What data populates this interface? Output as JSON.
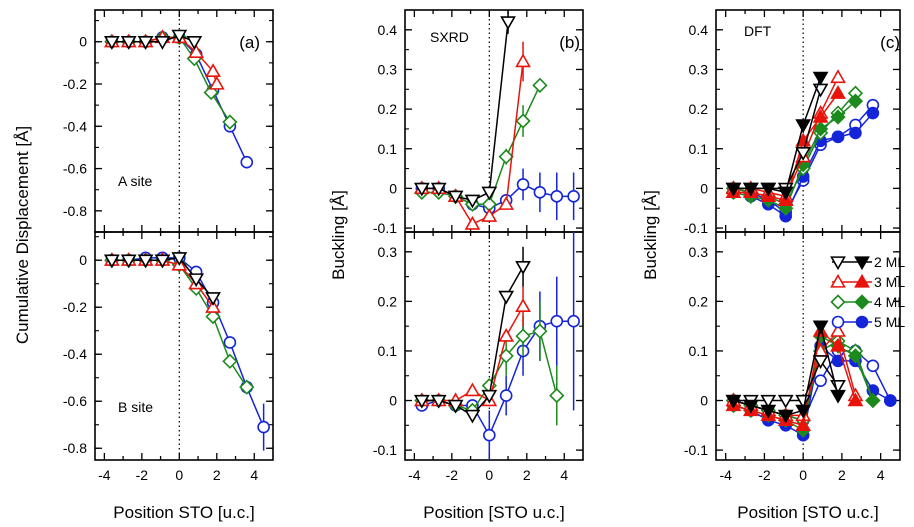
{
  "colors": {
    "2 ML": "#000000",
    "3 ML": "#e8140c",
    "4 ML": "#1c8a1c",
    "5 ML": "#1424d8"
  },
  "legend": [
    "2 ML",
    "3 ML",
    "4 ML",
    "5 ML"
  ],
  "chart_data": [
    {
      "type": "scatter",
      "panel": "a-top",
      "label": "(a)",
      "annotation": "A site",
      "ylabel": "Cumulative Displacement [Å]",
      "xlim": [
        -4.5,
        5.0
      ],
      "ylim": [
        -0.9,
        0.15
      ],
      "yticks": [
        "0",
        "-0.2",
        "-0.4",
        "-0.6",
        "-0.8"
      ],
      "yvals": [
        0,
        -0.2,
        -0.4,
        -0.6,
        -0.8
      ],
      "series": [
        {
          "name": "2 ML",
          "x": [
            -3.6,
            -2.7,
            -1.8,
            -0.9,
            0.0,
            0.8
          ],
          "y": [
            0.0,
            0.0,
            0.0,
            0.0,
            0.03,
            0.0
          ],
          "marker": "tri-down",
          "fill": "open"
        },
        {
          "name": "3 ML",
          "x": [
            -3.6,
            -2.7,
            -1.8,
            -0.9,
            0.0,
            0.9,
            1.8,
            2.0
          ],
          "y": [
            0.0,
            0.0,
            0.0,
            0.02,
            0.02,
            -0.05,
            -0.14,
            -0.2
          ],
          "marker": "tri-up",
          "fill": "open"
        },
        {
          "name": "4 ML",
          "x": [
            -3.6,
            -2.7,
            -1.8,
            -0.9,
            0.0,
            0.8,
            1.7,
            2.7
          ],
          "y": [
            0.0,
            0.0,
            0.0,
            0.02,
            0.02,
            -0.08,
            -0.24,
            -0.38
          ],
          "marker": "diamond",
          "fill": "open"
        },
        {
          "name": "5 ML",
          "x": [
            -3.6,
            -2.7,
            -1.8,
            -0.9,
            0.0,
            0.9,
            1.8,
            2.7,
            3.6
          ],
          "y": [
            0.0,
            0.0,
            0.0,
            0.02,
            0.02,
            -0.06,
            -0.23,
            -0.4,
            -0.57
          ],
          "marker": "circle",
          "fill": "open"
        }
      ]
    },
    {
      "type": "scatter",
      "panel": "a-bottom",
      "annotation": "B site",
      "xlabel": "Position STO [u.c.]",
      "xlim": [
        -4.5,
        5.0
      ],
      "ylim": [
        -0.85,
        0.12
      ],
      "xticks": [
        "-4",
        "-2",
        "0",
        "2",
        "4"
      ],
      "yticks": [
        "0",
        "-0.2",
        "-0.4",
        "-0.6",
        "-0.8"
      ],
      "yvals": [
        0,
        -0.2,
        -0.4,
        -0.6,
        -0.8
      ],
      "series": [
        {
          "name": "2 ML",
          "x": [
            -3.6,
            -2.7,
            -1.8,
            -0.9,
            0.0,
            0.9,
            1.8
          ],
          "y": [
            0.0,
            0.0,
            0.0,
            0.0,
            0.01,
            -0.08,
            -0.16
          ],
          "marker": "tri-down",
          "fill": "open"
        },
        {
          "name": "3 ML",
          "x": [
            -3.6,
            -2.7,
            -1.8,
            -0.9,
            0.0,
            0.9,
            1.8
          ],
          "y": [
            0.0,
            0.0,
            0.0,
            0.0,
            -0.02,
            -0.1,
            -0.2
          ],
          "marker": "tri-up",
          "fill": "open"
        },
        {
          "name": "4 ML",
          "x": [
            -3.6,
            -2.7,
            -1.8,
            -0.9,
            0.0,
            0.9,
            1.8,
            2.7,
            3.6
          ],
          "y": [
            0.0,
            0.0,
            0.0,
            0.0,
            -0.02,
            -0.12,
            -0.24,
            -0.43,
            -0.54
          ],
          "marker": "diamond",
          "fill": "open"
        },
        {
          "name": "5 ML",
          "x": [
            -3.6,
            -2.7,
            -1.8,
            -0.9,
            0.0,
            0.9,
            1.8,
            2.7,
            3.6,
            4.5
          ],
          "y": [
            0.0,
            0.0,
            0.01,
            0.01,
            0.01,
            -0.05,
            -0.18,
            -0.35,
            -0.54,
            -0.71
          ],
          "yerr": [
            0,
            0,
            0,
            0,
            0,
            0,
            0,
            0,
            0,
            0.1
          ],
          "marker": "circle",
          "fill": "open"
        }
      ]
    },
    {
      "type": "scatter",
      "panel": "b-top",
      "label": "(b)",
      "annotation": "SXRD",
      "ylabel": "Buckling [Å]",
      "xlim": [
        -4.5,
        5.0
      ],
      "ylim": [
        -0.11,
        0.45
      ],
      "yticks": [
        "0.4",
        "0.3",
        "0.2",
        "0.1",
        "0",
        "-0.1"
      ],
      "yvals": [
        0.4,
        0.3,
        0.2,
        0.1,
        0,
        -0.1
      ],
      "series": [
        {
          "name": "2 ML",
          "x": [
            -3.6,
            -2.7,
            -1.8,
            -0.9,
            0.0,
            1.0
          ],
          "y": [
            0.0,
            0.0,
            -0.02,
            -0.03,
            -0.01,
            0.42
          ],
          "yerr": [
            0,
            0,
            0,
            0,
            0,
            0.03
          ],
          "marker": "tri-down",
          "fill": "open"
        },
        {
          "name": "3 ML",
          "x": [
            -3.6,
            -2.7,
            -1.8,
            -0.9,
            0.0,
            0.9,
            1.8
          ],
          "y": [
            0.0,
            0.0,
            -0.02,
            -0.09,
            -0.07,
            -0.04,
            0.32
          ],
          "yerr": [
            0,
            0,
            0,
            0,
            0,
            0,
            0.05
          ],
          "marker": "tri-up",
          "fill": "open"
        },
        {
          "name": "4 ML",
          "x": [
            -3.6,
            -2.7,
            -1.8,
            -0.9,
            0.0,
            0.9,
            1.8,
            2.7
          ],
          "y": [
            -0.01,
            -0.01,
            -0.02,
            -0.04,
            -0.04,
            0.08,
            0.17,
            0.26
          ],
          "yerr": [
            0,
            0,
            0,
            0,
            0,
            0.02,
            0.04,
            0
          ],
          "marker": "diamond",
          "fill": "open"
        },
        {
          "name": "5 ML",
          "x": [
            -3.6,
            -2.7,
            -1.8,
            -0.9,
            0.0,
            0.9,
            1.8,
            2.7,
            3.6,
            4.5
          ],
          "y": [
            0.0,
            0.0,
            -0.02,
            -0.04,
            -0.05,
            -0.03,
            0.01,
            -0.01,
            -0.02,
            -0.02
          ],
          "yerr": [
            0,
            0,
            0,
            0,
            0,
            0,
            0.04,
            0.05,
            0.06,
            0.06
          ],
          "marker": "circle",
          "fill": "open"
        }
      ]
    },
    {
      "type": "scatter",
      "panel": "b-bottom",
      "xlabel": "Position [STO u.c.]",
      "xlim": [
        -4.5,
        5.0
      ],
      "ylim": [
        -0.12,
        0.34
      ],
      "xticks": [
        "-4",
        "-2",
        "0",
        "2",
        "4"
      ],
      "yticks": [
        "0.3",
        "0.2",
        "0.1",
        "0",
        "-0.1"
      ],
      "yvals": [
        0.3,
        0.2,
        0.1,
        0,
        -0.1
      ],
      "series": [
        {
          "name": "2 ML",
          "x": [
            -3.6,
            -2.7,
            -1.8,
            -0.9,
            0.0,
            0.9,
            1.8
          ],
          "y": [
            0.0,
            0.0,
            -0.01,
            -0.03,
            0.01,
            0.21,
            0.27
          ],
          "yerr": [
            0,
            0,
            0,
            0,
            0,
            0,
            0.04
          ],
          "marker": "tri-down",
          "fill": "open"
        },
        {
          "name": "3 ML",
          "x": [
            -3.6,
            -2.7,
            -1.8,
            -0.9,
            0.0,
            0.9,
            1.8
          ],
          "y": [
            0.0,
            0.0,
            0.0,
            0.02,
            0.0,
            0.13,
            0.19
          ],
          "yerr": [
            0,
            0,
            0,
            0,
            0,
            0,
            0.04
          ],
          "marker": "tri-up",
          "fill": "open"
        },
        {
          "name": "4 ML",
          "x": [
            -3.6,
            -2.7,
            -1.8,
            -0.9,
            0.0,
            0.9,
            1.8,
            2.7,
            3.6
          ],
          "y": [
            0.0,
            0.0,
            -0.01,
            -0.02,
            0.03,
            0.09,
            0.13,
            0.14,
            0.01
          ],
          "yerr": [
            0,
            0,
            0,
            0,
            0,
            0.04,
            0.04,
            0.06,
            0.06
          ],
          "marker": "diamond",
          "fill": "open"
        },
        {
          "name": "5 ML",
          "x": [
            -3.6,
            -2.7,
            -1.8,
            -0.9,
            0.0,
            0.9,
            1.8,
            2.7,
            3.6,
            4.5
          ],
          "y": [
            -0.01,
            0.0,
            -0.01,
            -0.01,
            -0.07,
            0.01,
            0.1,
            0.15,
            0.16,
            0.16
          ],
          "yerr": [
            0,
            0,
            0,
            0,
            0.05,
            0.04,
            0.05,
            0.07,
            0.09,
            0.18
          ],
          "marker": "circle",
          "fill": "open"
        }
      ]
    },
    {
      "type": "scatter",
      "panel": "c-top",
      "label": "(c)",
      "annotation": "DFT",
      "ylabel": "Buckling [Å]",
      "xlim": [
        -4.5,
        5.0
      ],
      "ylim": [
        -0.11,
        0.45
      ],
      "yticks": [
        "0.4",
        "0.3",
        "0.2",
        "0.1",
        "0",
        "-0.1"
      ],
      "yvals": [
        0.4,
        0.3,
        0.2,
        0.1,
        0,
        -0.1
      ],
      "series": [
        {
          "name": "2 ML",
          "x": [
            -3.6,
            -2.7,
            -1.8,
            -0.9,
            0.0,
            0.9
          ],
          "y": [
            0.0,
            0.0,
            0.0,
            -0.01,
            0.16,
            0.28
          ],
          "marker": "tri-down",
          "fill": "solid",
          "x_open": [
            -3.6,
            -2.7,
            -1.8,
            -0.9,
            0.0,
            0.9
          ],
          "y_open": [
            0.0,
            0.0,
            0.0,
            0.0,
            0.09,
            0.25
          ]
        },
        {
          "name": "3 ML",
          "x": [
            -3.6,
            -2.7,
            -1.8,
            -0.9,
            0.0,
            0.9,
            1.8
          ],
          "y": [
            -0.01,
            -0.01,
            -0.02,
            -0.03,
            0.12,
            0.18,
            0.24
          ],
          "marker": "tri-up",
          "fill": "solid",
          "x_open": [
            -3.6,
            -2.7,
            -1.8,
            -0.9,
            0.0,
            0.9,
            1.8
          ],
          "y_open": [
            0.0,
            0.0,
            -0.01,
            -0.02,
            0.08,
            0.19,
            0.28
          ]
        },
        {
          "name": "4 ML",
          "x": [
            -3.6,
            -2.7,
            -1.8,
            -0.9,
            0.0,
            0.9,
            1.8,
            2.7
          ],
          "y": [
            -0.01,
            -0.02,
            -0.03,
            -0.05,
            0.06,
            0.15,
            0.18,
            0.22
          ],
          "marker": "diamond",
          "fill": "solid",
          "x_open": [
            -3.6,
            -2.7,
            -1.8,
            -0.9,
            0.0,
            0.9,
            1.8,
            2.7
          ],
          "y_open": [
            0.0,
            -0.01,
            -0.02,
            -0.04,
            0.05,
            0.14,
            0.19,
            0.24
          ]
        },
        {
          "name": "5 ML",
          "x": [
            -3.6,
            -2.7,
            -1.8,
            -0.9,
            0.0,
            0.9,
            1.8,
            2.7,
            3.6
          ],
          "y": [
            -0.01,
            -0.02,
            -0.04,
            -0.07,
            0.03,
            0.12,
            0.13,
            0.14,
            0.19
          ],
          "marker": "circle",
          "fill": "solid",
          "x_open": [
            -3.6,
            -2.7,
            -1.8,
            -0.9,
            0.0,
            0.9,
            1.8,
            2.7,
            3.6
          ],
          "y_open": [
            0.0,
            -0.01,
            -0.03,
            -0.06,
            0.02,
            0.11,
            0.13,
            0.16,
            0.21
          ]
        }
      ]
    },
    {
      "type": "scatter",
      "panel": "c-bottom",
      "xlabel": "Position [STO u.c.]",
      "xlim": [
        -4.5,
        5.0
      ],
      "ylim": [
        -0.12,
        0.34
      ],
      "xticks": [
        "-4",
        "-2",
        "0",
        "2",
        "4"
      ],
      "yticks": [
        "0.3",
        "0.2",
        "0.1",
        "0",
        "-0.1"
      ],
      "yvals": [
        0.3,
        0.2,
        0.1,
        0,
        -0.1
      ],
      "series": [
        {
          "name": "2 ML",
          "x": [
            -3.6,
            -2.7,
            -1.8,
            -0.9,
            0.0,
            0.9,
            1.8
          ],
          "y": [
            0.0,
            -0.01,
            -0.02,
            -0.03,
            -0.02,
            0.15,
            0.01
          ],
          "marker": "tri-down",
          "fill": "solid",
          "x_open": [
            -3.6,
            -2.7,
            -1.8,
            -0.9,
            0.0,
            0.9,
            1.8
          ],
          "y_open": [
            0.0,
            0.0,
            0.0,
            0.0,
            0.0,
            0.08,
            0.03
          ]
        },
        {
          "name": "3 ML",
          "x": [
            -3.6,
            -2.7,
            -1.8,
            -0.9,
            0.0,
            0.9,
            1.8,
            2.7
          ],
          "y": [
            -0.01,
            -0.02,
            -0.03,
            -0.04,
            -0.05,
            0.14,
            0.11,
            0.0
          ],
          "marker": "tri-up",
          "fill": "solid",
          "x_open": [
            -3.6,
            -2.7,
            -1.8,
            -0.9,
            0.0,
            0.9,
            1.8,
            2.7
          ],
          "y_open": [
            0.0,
            -0.01,
            -0.02,
            -0.03,
            -0.03,
            0.1,
            0.14,
            0.01
          ]
        },
        {
          "name": "4 ML",
          "x": [
            -3.6,
            -2.7,
            -1.8,
            -0.9,
            0.0,
            0.9,
            1.8,
            2.7,
            3.6
          ],
          "y": [
            -0.01,
            -0.02,
            -0.03,
            -0.04,
            -0.06,
            0.13,
            0.11,
            0.09,
            0.0
          ],
          "marker": "diamond",
          "fill": "solid",
          "x_open": [
            -3.6,
            -2.7,
            -1.8,
            -0.9,
            0.0,
            0.9,
            1.8,
            2.7,
            3.6
          ],
          "y_open": [
            0.0,
            -0.01,
            -0.02,
            -0.03,
            -0.04,
            0.1,
            0.12,
            0.1,
            0.0
          ]
        },
        {
          "name": "5 ML",
          "x": [
            -3.6,
            -2.7,
            -1.8,
            -0.9,
            0.0,
            0.9,
            1.8,
            2.7,
            3.6,
            4.5
          ],
          "y": [
            -0.01,
            -0.02,
            -0.04,
            -0.05,
            -0.07,
            0.11,
            0.08,
            0.08,
            0.02,
            0.0
          ],
          "marker": "circle",
          "fill": "solid",
          "x_open": [
            -3.6,
            -2.7,
            -1.8,
            -0.9,
            0.0,
            0.9,
            1.8,
            2.7,
            3.6,
            4.5
          ],
          "y_open": [
            0.0,
            -0.01,
            -0.02,
            -0.03,
            -0.04,
            0.04,
            0.1,
            0.1,
            0.07,
            0.0
          ]
        }
      ]
    }
  ]
}
